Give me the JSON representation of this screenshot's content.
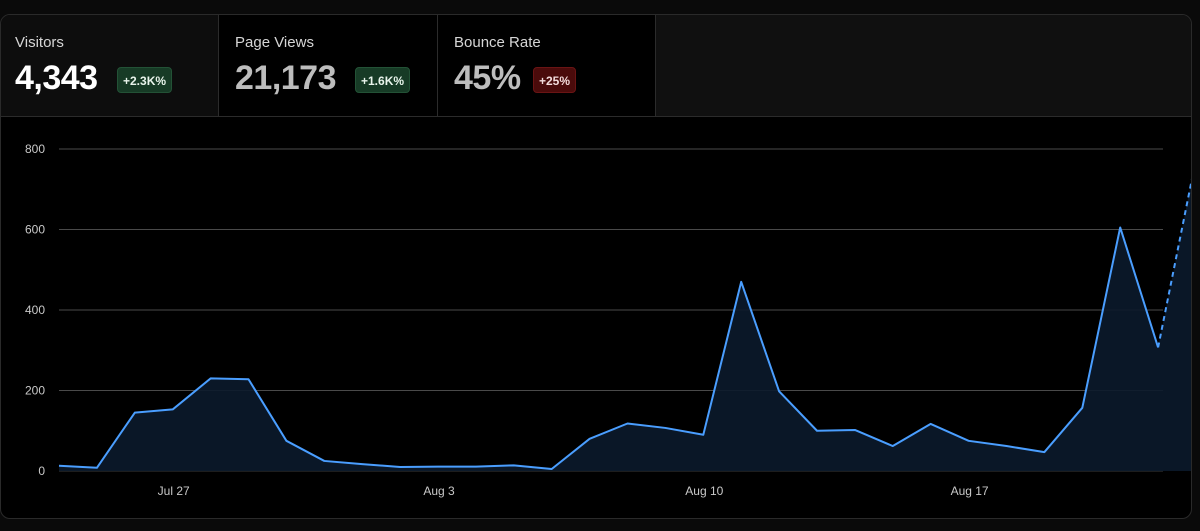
{
  "metrics": [
    {
      "label": "Visitors",
      "value": "4,343",
      "change": "+2.3K%",
      "trend": "up"
    },
    {
      "label": "Page Views",
      "value": "21,173",
      "change": "+1.6K%",
      "trend": "up"
    },
    {
      "label": "Bounce Rate",
      "value": "45%",
      "change": "+25%",
      "trend": "down"
    }
  ],
  "chart_data": {
    "type": "area",
    "title": "",
    "xlabel": "",
    "ylabel": "",
    "ylim": [
      0,
      800
    ],
    "yticks": [
      0,
      200,
      400,
      600,
      800
    ],
    "xtick_labels": [
      {
        "label": "Jul 27",
        "index": 3
      },
      {
        "label": "Aug 3",
        "index": 10
      },
      {
        "label": "Aug 10",
        "index": 17
      },
      {
        "label": "Aug 17",
        "index": 24
      }
    ],
    "grid": true,
    "line_color": "#4a9eff",
    "fill_color": "#0b1a2b",
    "series": [
      {
        "values": [
          13,
          8,
          145,
          153,
          230,
          228,
          75,
          25,
          17,
          10,
          11,
          11,
          14,
          5,
          80,
          118,
          107,
          90,
          470,
          198,
          100,
          102,
          62,
          117,
          75,
          62,
          47,
          157,
          605,
          307
        ],
        "projected_value": 752
      }
    ]
  }
}
